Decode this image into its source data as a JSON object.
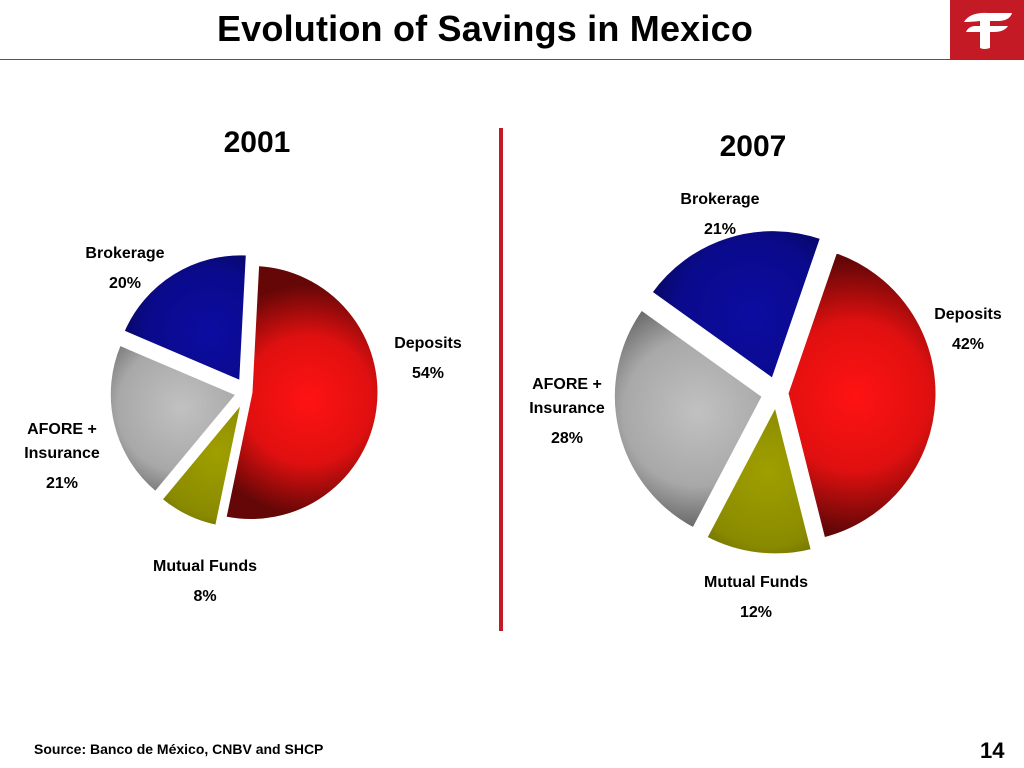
{
  "title": "Evolution of Savings in Mexico",
  "source": "Source: Banco de México, CNBV and SHCP",
  "page_number": "14",
  "colors": {
    "accent": "#c41a26"
  },
  "chart_data": [
    {
      "type": "pie",
      "title": "2001",
      "slices": [
        {
          "name": "Deposits",
          "value": 54,
          "label": "54%",
          "color": "#e01010"
        },
        {
          "name": "Mutual Funds",
          "value": 8,
          "label": "8%",
          "color": "#8a8a00"
        },
        {
          "name": "AFORE + Insurance",
          "value": 21,
          "label": "21%",
          "color": "#a8a8a8"
        },
        {
          "name": "Brokerage",
          "value": 20,
          "label": "20%",
          "color": "#0a0a8c"
        }
      ]
    },
    {
      "type": "pie",
      "title": "2007",
      "slices": [
        {
          "name": "Deposits",
          "value": 42,
          "label": "42%",
          "color": "#e01010"
        },
        {
          "name": "Mutual Funds",
          "value": 12,
          "label": "12%",
          "color": "#8a8a00"
        },
        {
          "name": "AFORE + Insurance",
          "value": 28,
          "label": "28%",
          "color": "#a8a8a8"
        },
        {
          "name": "Brokerage",
          "value": 21,
          "label": "21%",
          "color": "#0a0a8c"
        }
      ]
    }
  ]
}
